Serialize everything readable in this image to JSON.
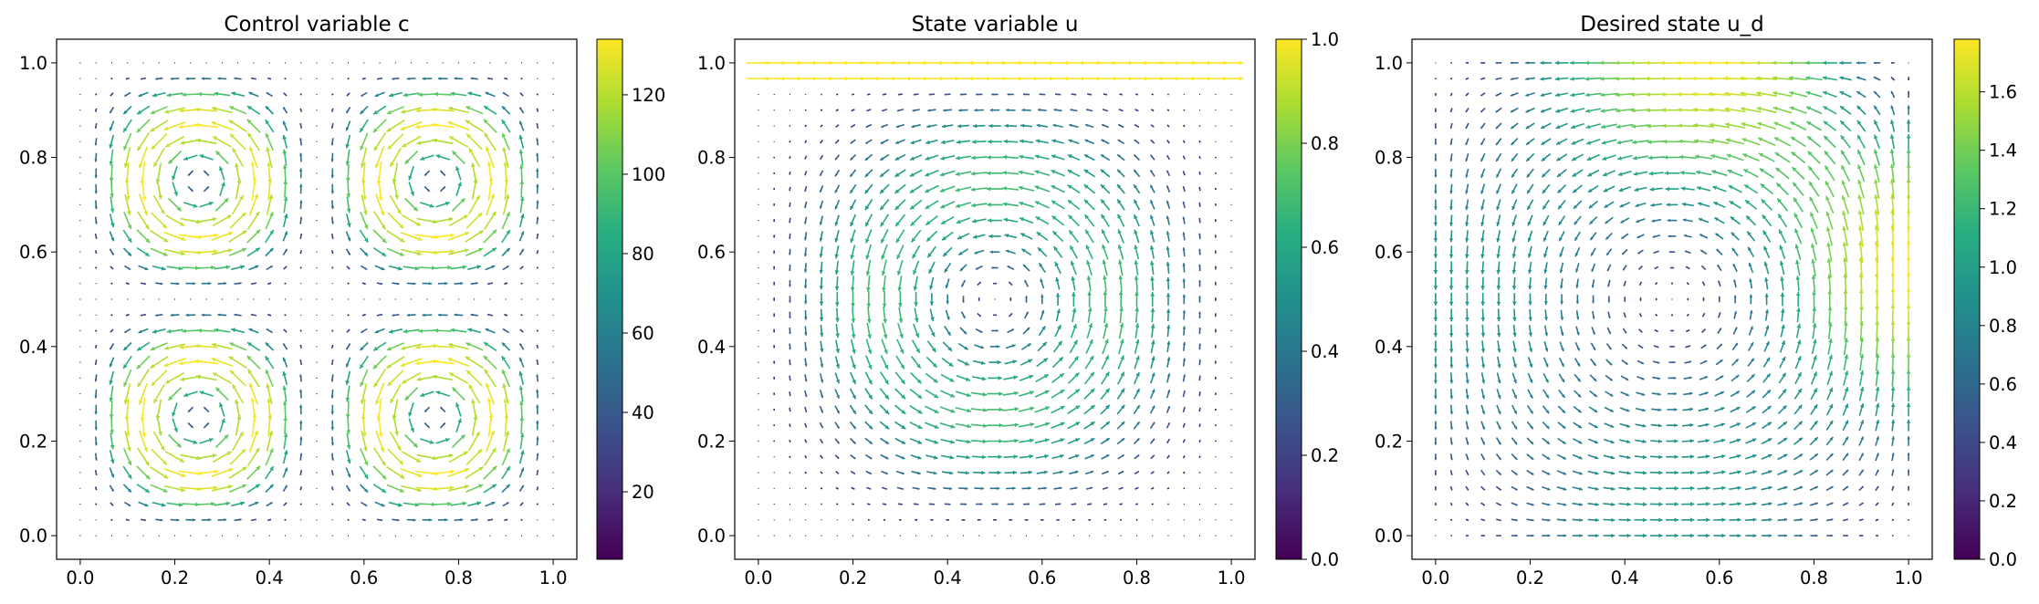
{
  "chart_data": [
    {
      "type": "quiver",
      "title": "Control variable c",
      "xlabel": "",
      "ylabel": "",
      "xlim": [
        -0.05,
        1.05
      ],
      "ylim": [
        -0.05,
        1.05
      ],
      "xticks": [
        "0.0",
        "0.2",
        "0.4",
        "0.6",
        "0.8",
        "1.0"
      ],
      "yticks": [
        "0.0",
        "0.2",
        "0.4",
        "0.6",
        "0.8",
        "1.0"
      ],
      "grid": false,
      "colormap": "viridis",
      "colorbar": {
        "min": 3,
        "max": 134,
        "ticks": [
          "20",
          "40",
          "60",
          "80",
          "100",
          "120"
        ]
      },
      "field": "four counter-rotating cells with strong boundary currents; peak magnitude near x≈0.95, y≈0.75 and along y≈0.06",
      "grid_points": 31
    },
    {
      "type": "quiver",
      "title": "State variable u",
      "xlabel": "",
      "ylabel": "",
      "xlim": [
        -0.05,
        1.05
      ],
      "ylim": [
        -0.05,
        1.05
      ],
      "xticks": [
        "0.0",
        "0.2",
        "0.4",
        "0.6",
        "0.8",
        "1.0"
      ],
      "yticks": [
        "0.0",
        "0.2",
        "0.4",
        "0.6",
        "0.8",
        "1.0"
      ],
      "grid": false,
      "colormap": "viridis",
      "colorbar": {
        "min": 0.0,
        "max": 1.0,
        "ticks": [
          "0.0",
          "0.2",
          "0.4",
          "0.6",
          "0.8",
          "1.0"
        ]
      },
      "field": "lid-driven cavity style flow: magnitude 1.0 along top boundary, counter-clockwise vortex centred near x≈0.6, y≈0.45",
      "grid_points": 31
    },
    {
      "type": "quiver",
      "title": "Desired state u_d",
      "xlabel": "",
      "ylabel": "",
      "xlim": [
        -0.05,
        1.05
      ],
      "ylim": [
        -0.05,
        1.05
      ],
      "xticks": [
        "0.0",
        "0.2",
        "0.4",
        "0.6",
        "0.8",
        "1.0"
      ],
      "yticks": [
        "0.0",
        "0.2",
        "0.4",
        "0.6",
        "0.8",
        "1.0"
      ],
      "grid": false,
      "colormap": "viridis",
      "colorbar": {
        "min": 0.0,
        "max": 1.78,
        "ticks": [
          "0.0",
          "0.2",
          "0.4",
          "0.6",
          "0.8",
          "1.0",
          "1.2",
          "1.4",
          "1.6"
        ]
      },
      "field": "large clockwise swirl centred near x≈0.55, y≈0.55; peak magnitude ≈1.78 near top-right at x≈0.75, y≈1.0",
      "grid_points": 31
    }
  ]
}
